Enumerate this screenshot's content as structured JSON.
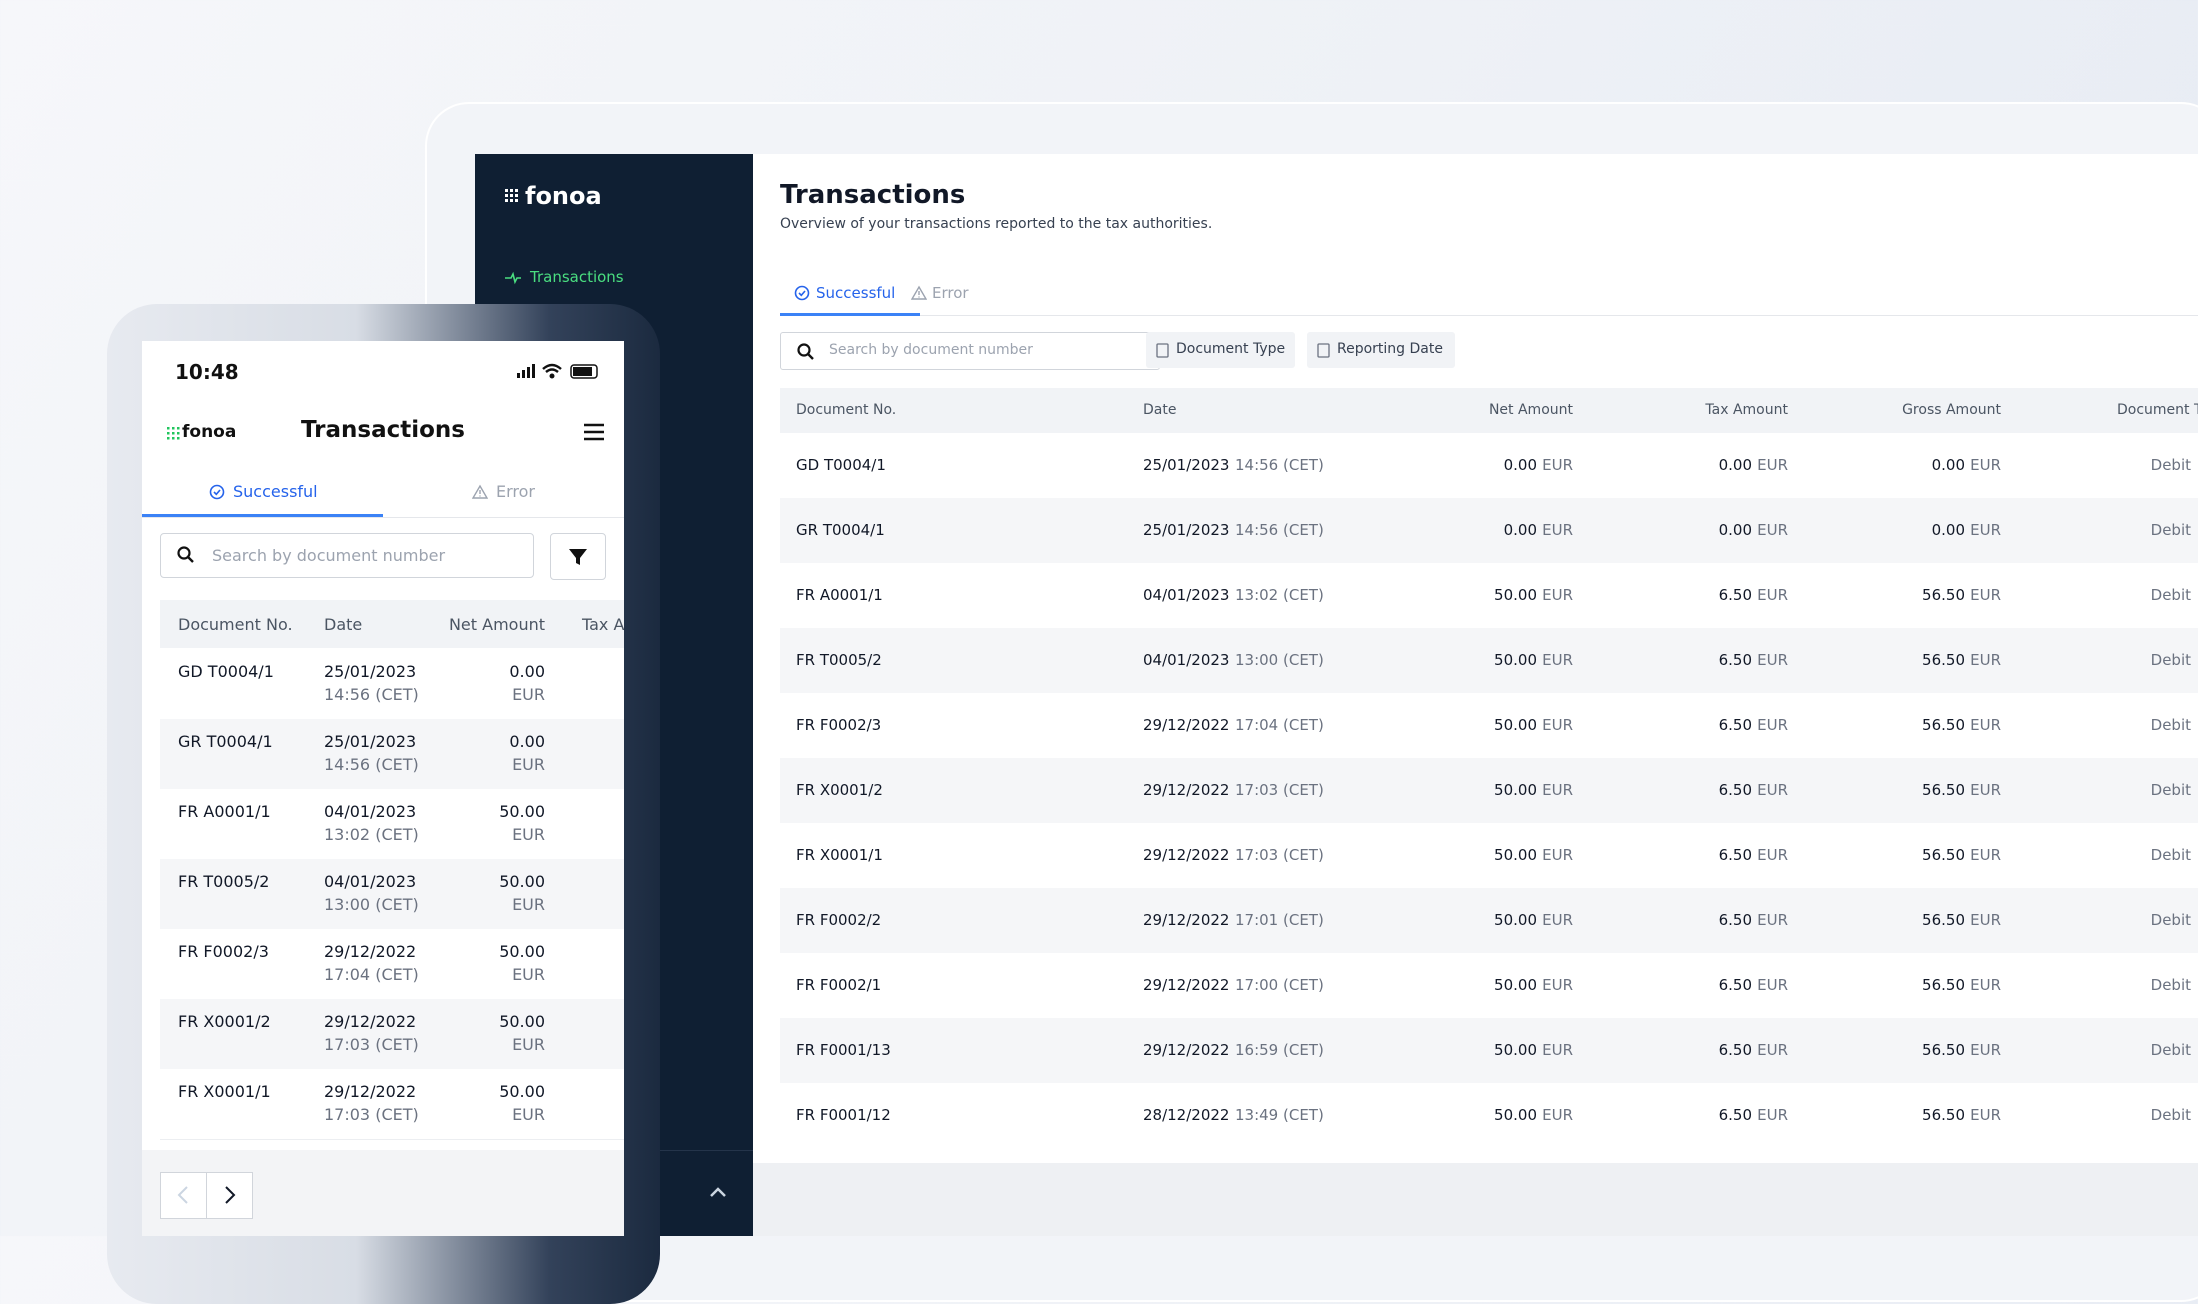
{
  "desktop": {
    "brand": "fonoa",
    "nav": [
      "Transactions"
    ],
    "title": "Transactions",
    "subtitle": "Overview of your transactions reported to the tax authorities.",
    "tabs": [
      "Successful",
      "Error"
    ],
    "search_placeholder": "Search by document number",
    "filters": [
      "Document Type",
      "Reporting Date"
    ],
    "table": {
      "columns": [
        "Document No.",
        "Date",
        "Net Amount",
        "Tax Amount",
        "Gross Amount",
        "Document Type"
      ],
      "currency": "EUR",
      "rows": [
        [
          "GD T0004/1",
          "25/01/2023",
          "14:56 (CET)",
          "0.00",
          "0.00",
          "0.00",
          "Debit"
        ],
        [
          "GR T0004/1",
          "25/01/2023",
          "14:56 (CET)",
          "0.00",
          "0.00",
          "0.00",
          "Debit"
        ],
        [
          "FR A0001/1",
          "04/01/2023",
          "13:02 (CET)",
          "50.00",
          "6.50",
          "56.50",
          "Debit"
        ],
        [
          "FR T0005/2",
          "04/01/2023",
          "13:00 (CET)",
          "50.00",
          "6.50",
          "56.50",
          "Debit"
        ],
        [
          "FR F0002/3",
          "29/12/2022",
          "17:04 (CET)",
          "50.00",
          "6.50",
          "56.50",
          "Debit"
        ],
        [
          "FR X0001/2",
          "29/12/2022",
          "17:03 (CET)",
          "50.00",
          "6.50",
          "56.50",
          "Debit"
        ],
        [
          "FR X0001/1",
          "29/12/2022",
          "17:03 (CET)",
          "50.00",
          "6.50",
          "56.50",
          "Debit"
        ],
        [
          "FR F0002/2",
          "29/12/2022",
          "17:01 (CET)",
          "50.00",
          "6.50",
          "56.50",
          "Debit"
        ],
        [
          "FR F0002/1",
          "29/12/2022",
          "17:00 (CET)",
          "50.00",
          "6.50",
          "56.50",
          "Debit"
        ],
        [
          "FR F0001/13",
          "29/12/2022",
          "16:59 (CET)",
          "50.00",
          "6.50",
          "56.50",
          "Debit"
        ],
        [
          "FR F0001/12",
          "28/12/2022",
          "13:49 (CET)",
          "50.00",
          "6.50",
          "56.50",
          "Debit"
        ]
      ]
    }
  },
  "mobile": {
    "time": "10:48",
    "brand": "fonoa",
    "title": "Transactions",
    "tabs": [
      "Successful",
      "Error"
    ],
    "search_placeholder": "Search by document number",
    "table": {
      "columns": [
        "Document No.",
        "Date",
        "Net Amount",
        "Tax Amount"
      ],
      "currency": "EUR",
      "rows": [
        [
          "GD T0004/1",
          "25/01/2023",
          "14:56 (CET)",
          "0.00"
        ],
        [
          "GR T0004/1",
          "25/01/2023",
          "14:56 (CET)",
          "0.00"
        ],
        [
          "FR A0001/1",
          "04/01/2023",
          "13:02 (CET)",
          "50.00"
        ],
        [
          "FR T0005/2",
          "04/01/2023",
          "13:00 (CET)",
          "50.00"
        ],
        [
          "FR F0002/3",
          "29/12/2022",
          "17:04 (CET)",
          "50.00"
        ],
        [
          "FR X0001/2",
          "29/12/2022",
          "17:03 (CET)",
          "50.00"
        ],
        [
          "FR X0001/1",
          "29/12/2022",
          "17:03 (CET)",
          "50.00"
        ]
      ]
    }
  }
}
